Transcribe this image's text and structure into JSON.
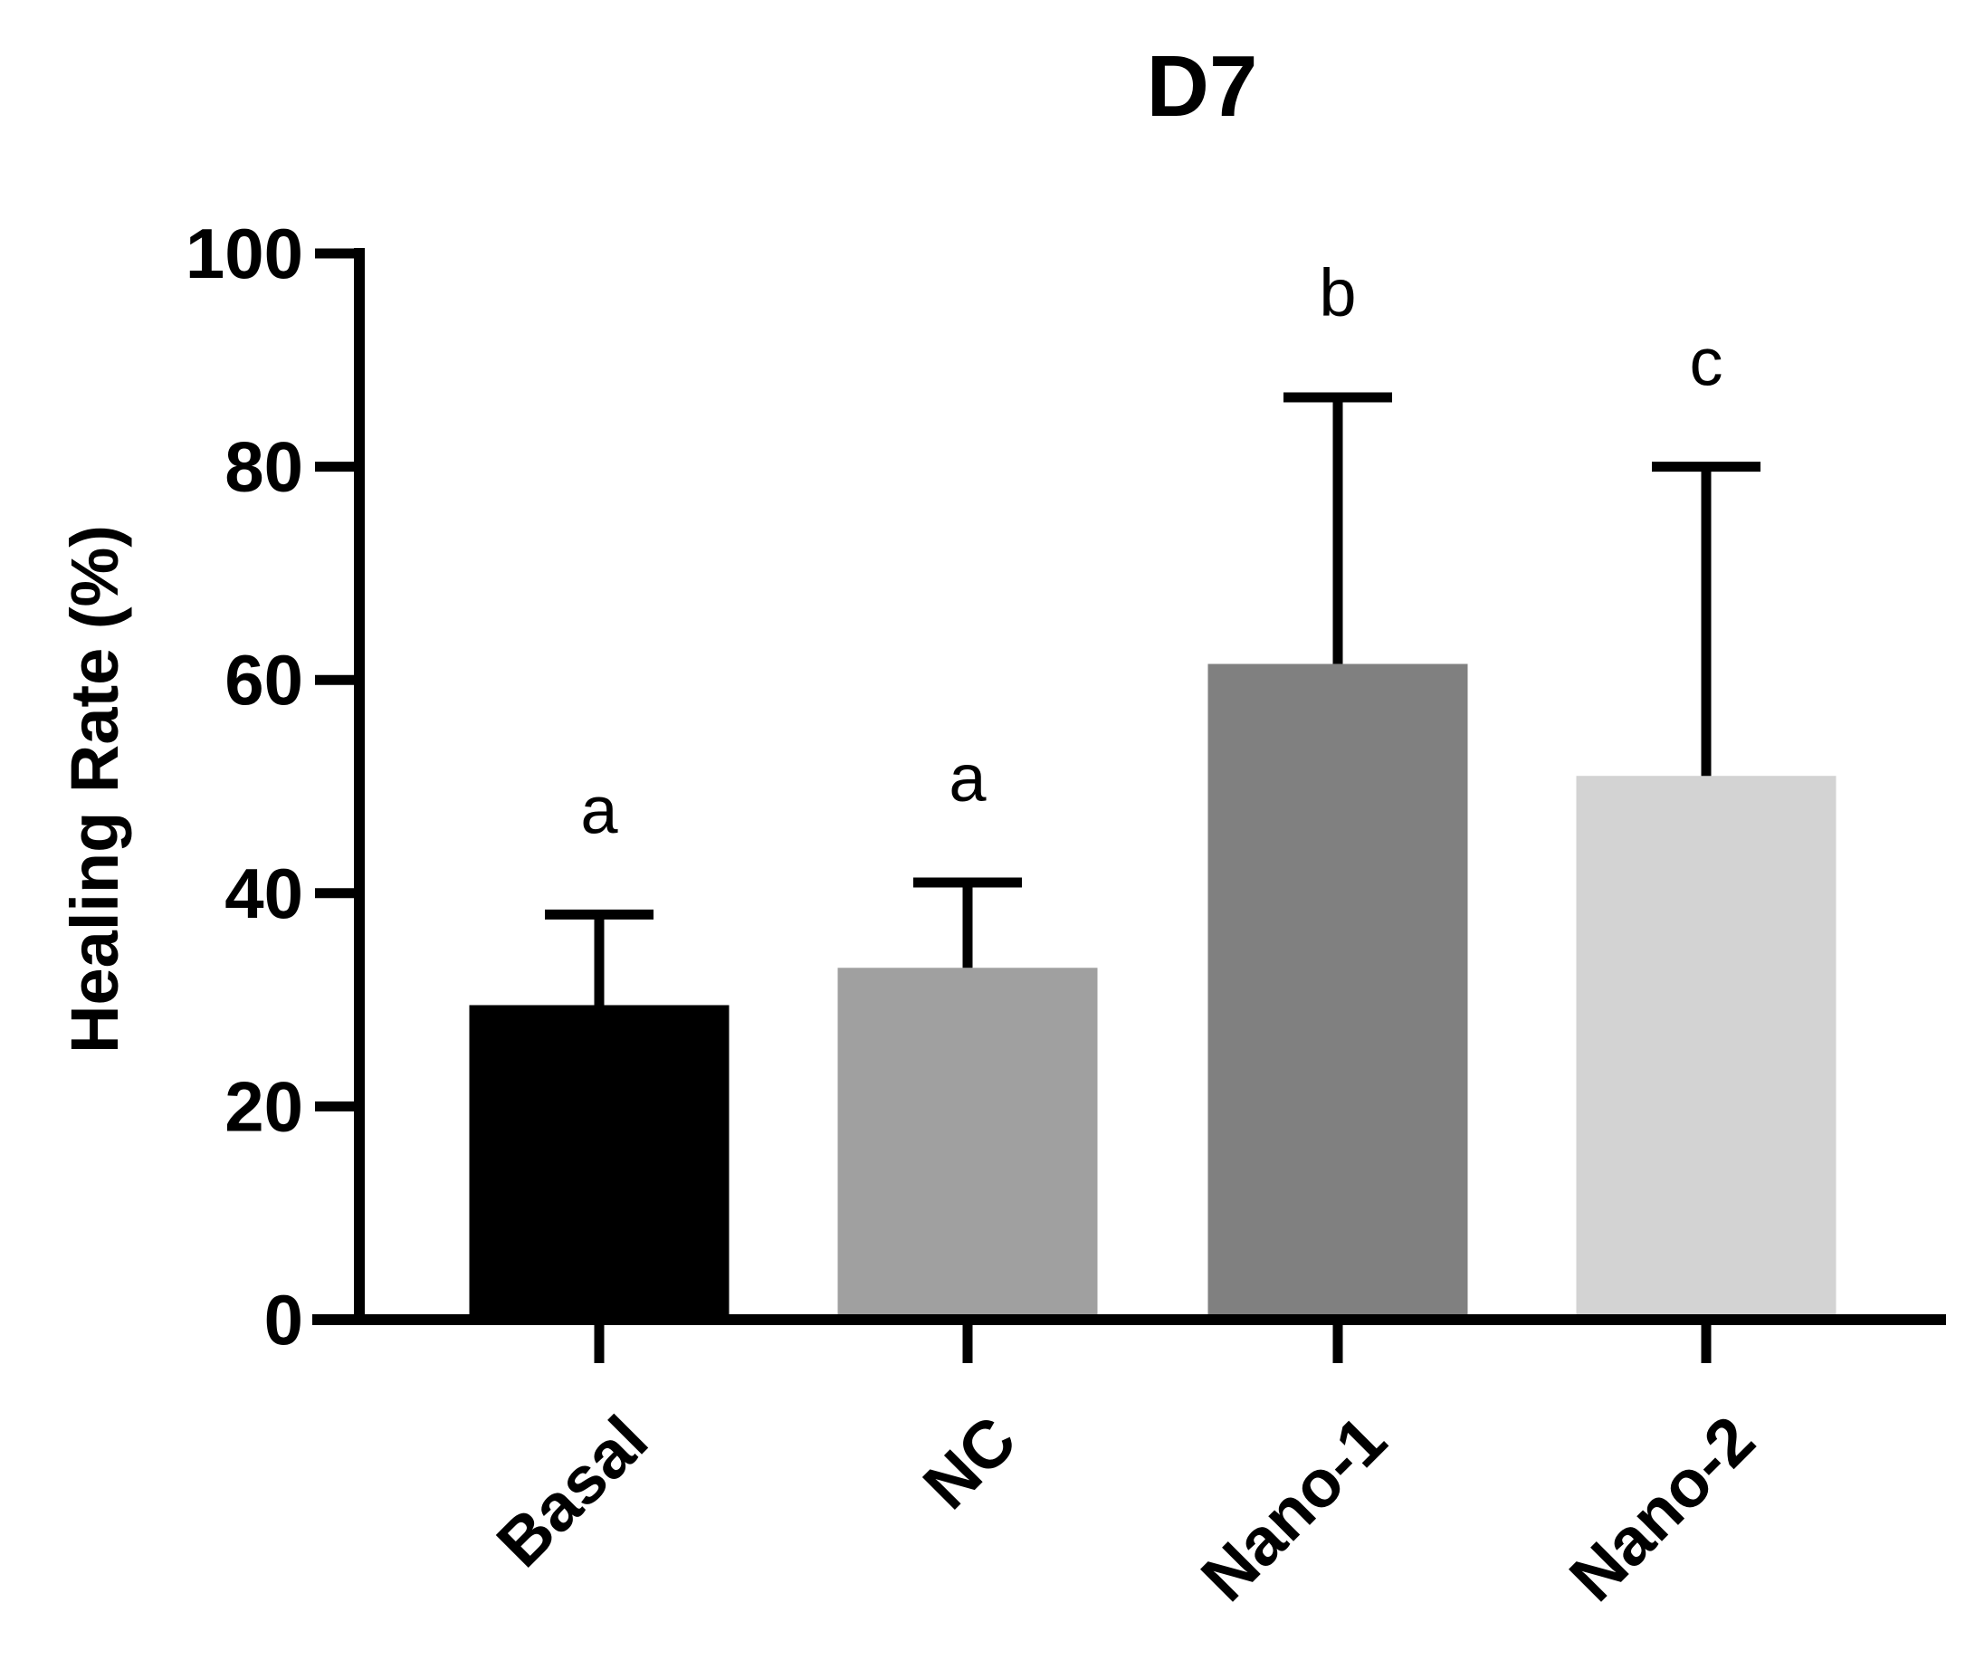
{
  "chart_data": {
    "type": "bar",
    "title": "D7",
    "ylabel": "Healing Rate (%)",
    "xlabel": "",
    "ylim": [
      0,
      100
    ],
    "yticks": [
      0,
      20,
      40,
      60,
      80,
      100
    ],
    "grid": false,
    "legend": "none",
    "categories": [
      "Basal",
      "NC",
      "Nano-1",
      "Nano-2"
    ],
    "values": [
      29.5,
      33,
      61.5,
      51
    ],
    "errors": [
      8.5,
      8,
      25,
      29
    ],
    "significance_labels": [
      "a",
      "a",
      "b",
      "c"
    ],
    "colors": [
      "#000000",
      "#a0a0a0",
      "#808080",
      "#d3d3d3"
    ]
  }
}
